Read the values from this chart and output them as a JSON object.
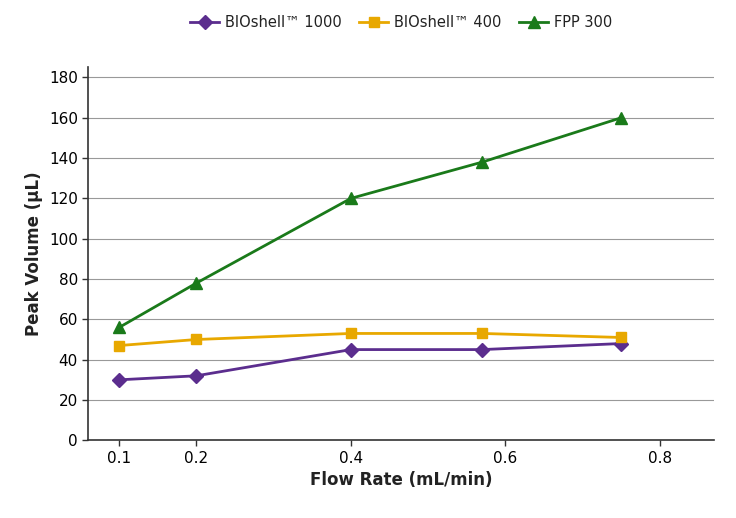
{
  "title": "",
  "xlabel": "Flow Rate (mL/min)",
  "ylabel": "Peak Volume (µL)",
  "x_values": [
    0.1,
    0.2,
    0.4,
    0.57,
    0.75
  ],
  "bioshell1000_y": [
    30,
    32,
    45,
    45,
    48
  ],
  "bioshell400_y": [
    47,
    50,
    53,
    53,
    51
  ],
  "fpp300_y": [
    56,
    78,
    120,
    138,
    160
  ],
  "bioshell1000_color": "#5B2D8E",
  "bioshell400_color": "#E8A800",
  "fpp300_color": "#1A7A1A",
  "legend_labels": [
    "BIOshell™ 1000",
    "BIOshell™ 400",
    "FPP 300"
  ],
  "ylim": [
    0,
    185
  ],
  "yticks": [
    0,
    20,
    40,
    60,
    80,
    100,
    120,
    140,
    160,
    180
  ],
  "xlim": [
    0.06,
    0.87
  ],
  "xticks": [
    0.1,
    0.2,
    0.4,
    0.6,
    0.8
  ],
  "xlabel_fontsize": 12,
  "ylabel_fontsize": 12,
  "legend_fontsize": 10.5,
  "tick_fontsize": 11,
  "linewidth": 2.0,
  "markersize": 7,
  "background_color": "#ffffff",
  "grid_color": "#999999"
}
